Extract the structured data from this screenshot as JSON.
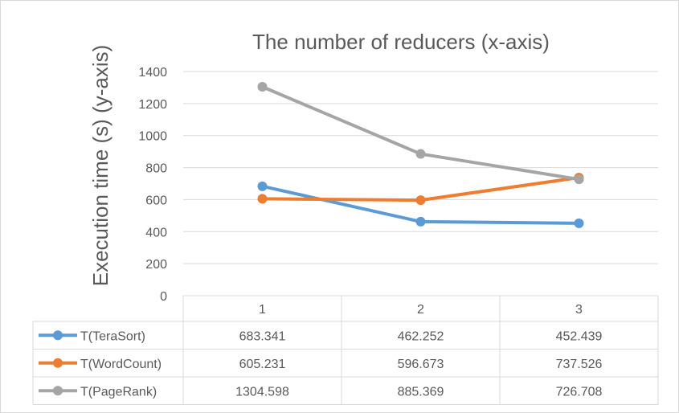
{
  "chart_data": {
    "type": "line",
    "title": "The number of reducers (x-axis)",
    "xlabel": "",
    "ylabel": "Execution time (s) (y-axis)",
    "ylim": [
      0,
      1400
    ],
    "yticks": [
      "0",
      "200",
      "400",
      "600",
      "800",
      "1000",
      "1200",
      "1400"
    ],
    "categories": [
      "1",
      "2",
      "3"
    ],
    "grid": true,
    "legend": "data-table",
    "series": [
      {
        "name": "T(TeraSort)",
        "color": "#5b9bd5",
        "values": [
          683.341,
          462.252,
          452.439
        ],
        "labels": [
          "683.341",
          "462.252",
          "452.439"
        ]
      },
      {
        "name": "T(WordCount)",
        "color": "#ed7d31",
        "values": [
          605.231,
          596.673,
          737.526
        ],
        "labels": [
          "605.231",
          "596.673",
          "737.526"
        ]
      },
      {
        "name": "T(PageRank)",
        "color": "#a5a5a5",
        "values": [
          1304.598,
          885.369,
          726.708
        ],
        "labels": [
          "1304.598",
          "885.369",
          "726.708"
        ]
      }
    ]
  }
}
